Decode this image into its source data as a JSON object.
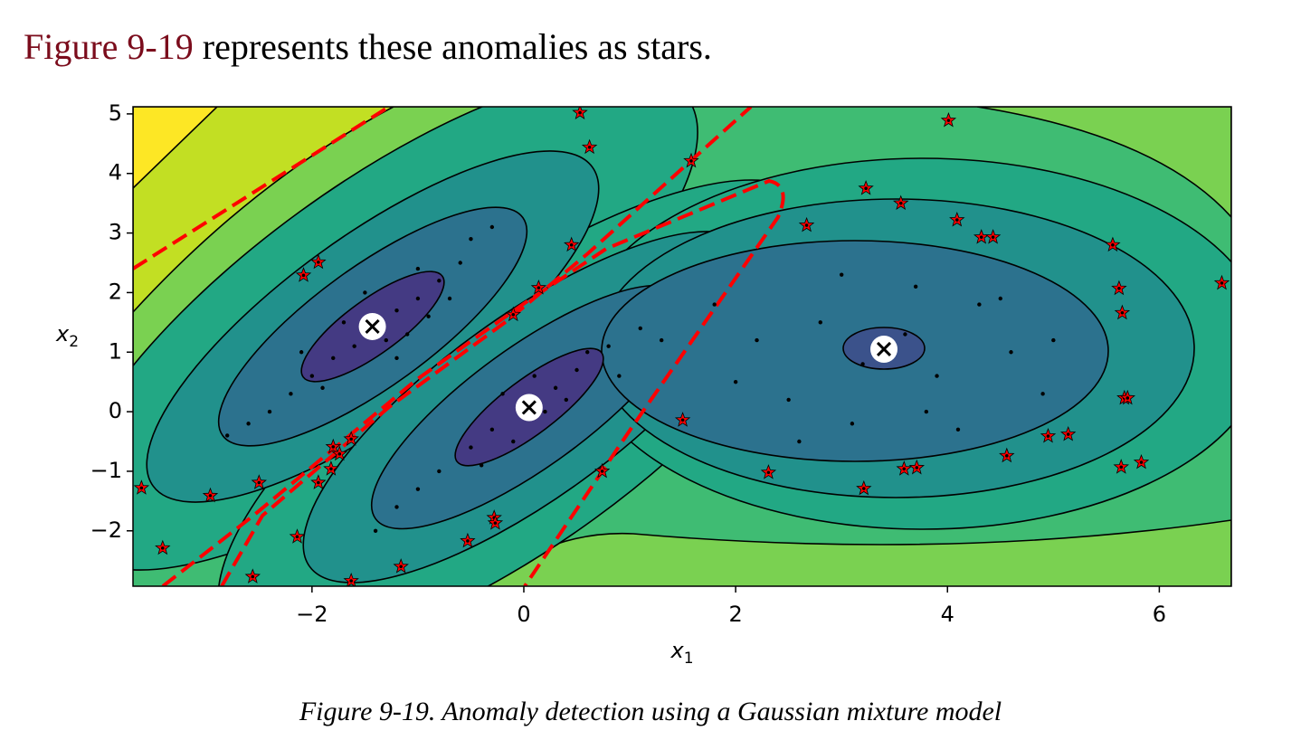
{
  "text": {
    "link": "Figure 9-19",
    "rest": "represents these anomalies as stars."
  },
  "chart_data": {
    "type": "scatter",
    "xlim": [
      -3.69,
      6.68
    ],
    "ylim": [
      -2.93,
      5.12
    ],
    "xticks": [
      {
        "value": -2,
        "label": "−2"
      },
      0,
      2,
      4,
      6
    ],
    "yticks": [
      {
        "value": -2,
        "label": "−2"
      },
      {
        "value": -1,
        "label": "−1"
      },
      0,
      1,
      2,
      3,
      4,
      5
    ],
    "xlabel": {
      "base": "x",
      "subscript": "1"
    },
    "ylabel": {
      "base": "x",
      "subscript": "2"
    },
    "series": [
      {
        "marker": "dot",
        "color": "#000000",
        "x": [
          -1.4,
          -1.2,
          -1.0,
          -0.8,
          -0.6,
          -1.6,
          -1.8,
          -2.0,
          -2.2,
          -2.4,
          -1.3,
          -1.7,
          -1.1,
          -0.9,
          -2.1,
          -2.6,
          -0.5,
          -1.5,
          -1.9,
          -1.2,
          -0.7,
          -2.8,
          -0.3,
          -1.0,
          0.0,
          0.3,
          0.5,
          -0.3,
          -0.5,
          -0.8,
          0.8,
          -1.0,
          0.2,
          -0.2,
          0.4,
          -0.4,
          0.9,
          -1.2,
          1.1,
          0.6,
          -0.1,
          1.3,
          -1.4,
          0.1,
          3.4,
          2.8,
          3.9,
          4.3,
          2.5,
          3.1,
          4.6,
          3.7,
          2.2,
          4.9,
          3.2,
          3.6,
          2.0,
          4.1,
          1.8,
          3.0,
          4.5,
          2.6,
          5.0,
          3.8
        ],
        "y": [
          1.4,
          1.7,
          1.9,
          2.2,
          2.5,
          1.1,
          0.9,
          0.6,
          0.3,
          0.0,
          1.2,
          1.5,
          1.3,
          1.6,
          1.0,
          -0.2,
          2.9,
          2.0,
          0.4,
          0.9,
          1.9,
          -0.4,
          3.1,
          2.4,
          0.0,
          0.4,
          0.7,
          -0.3,
          -0.6,
          -1.0,
          1.1,
          -1.3,
          0.0,
          0.3,
          0.2,
          -0.9,
          0.6,
          -1.6,
          1.4,
          1.0,
          -0.5,
          1.2,
          -2.0,
          0.6,
          1.0,
          1.5,
          0.6,
          1.8,
          0.2,
          -0.2,
          1.0,
          2.1,
          1.2,
          0.3,
          0.8,
          1.3,
          0.5,
          -0.3,
          1.8,
          2.3,
          1.9,
          -0.5,
          1.2,
          0.0
        ]
      },
      {
        "marker": "star",
        "color": "#ff0000",
        "x": [
          0.53,
          0.62,
          1.58,
          4.01,
          3.23,
          3.56,
          2.67,
          4.09,
          4.32,
          4.43,
          5.56,
          5.62,
          5.65,
          6.59,
          5.67,
          5.7,
          4.95,
          5.14,
          4.56,
          5.64,
          5.83,
          3.59,
          3.71,
          3.21,
          2.31,
          1.5,
          0.74,
          0.45,
          0.14,
          -0.1,
          -1.94,
          -2.08,
          -3.61,
          -2.96,
          -2.5,
          -3.41,
          -2.56,
          -1.63,
          -1.16,
          -0.53,
          -0.28,
          -0.27,
          -2.14,
          -1.94,
          -1.82,
          -1.8,
          -1.74,
          -1.63
        ],
        "y": [
          5.02,
          4.44,
          4.21,
          4.89,
          3.75,
          3.5,
          3.13,
          3.22,
          2.93,
          2.93,
          2.8,
          2.07,
          1.66,
          2.16,
          0.23,
          0.23,
          -0.41,
          -0.38,
          -0.74,
          -0.93,
          -0.85,
          -0.96,
          -0.94,
          -1.29,
          -1.02,
          -0.14,
          -1.0,
          2.8,
          2.08,
          1.63,
          2.51,
          2.29,
          -1.28,
          -1.41,
          -1.19,
          -2.29,
          -2.77,
          -2.84,
          -2.6,
          -2.17,
          -1.78,
          -1.87,
          -2.1,
          -1.19,
          -0.96,
          -0.59,
          -0.71,
          -0.46
        ]
      },
      {
        "marker": "centroid",
        "color": "#ffffff",
        "x": [
          -1.43,
          0.05,
          3.4
        ],
        "y": [
          1.43,
          0.07,
          1.05
        ]
      }
    ]
  },
  "caption": "Figure 9-19. Anomaly detection using a Gaussian mixture model"
}
